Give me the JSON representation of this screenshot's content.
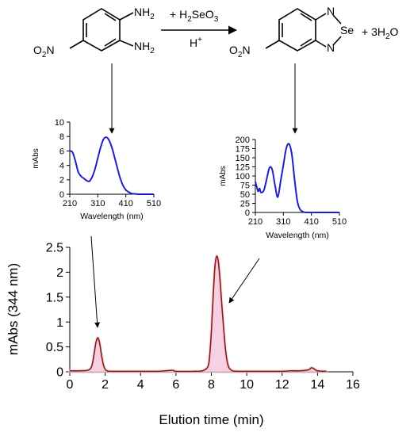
{
  "reaction": {
    "reactant": {
      "nh2_top": "NH",
      "nh2_top_sub": "2",
      "nh2_bottom": "NH",
      "nh2_bottom_sub": "2",
      "nitro": "O",
      "nitro_sub": "2",
      "nitro_n": "N"
    },
    "reagent_above": {
      "plus": "+ H",
      "sub2": "2",
      "rest": "SeO",
      "sub3": "3"
    },
    "reagent_below": {
      "base": "H",
      "sup": "+"
    },
    "product": {
      "n_top": "N",
      "se": "Se",
      "n_bottom": "N",
      "nitro": "O",
      "nitro_sub": "2",
      "nitro_n": "N"
    },
    "byproduct": {
      "pre": "+ 3H",
      "sub": "2",
      "post": "O"
    }
  },
  "colors": {
    "spectrum": "#1f1fcc",
    "chromatogram": "#8b1a10",
    "peak_fill": "#f2c6dc"
  },
  "chart_data": [
    {
      "type": "line",
      "id": "reactant-spectrum",
      "xlabel": "Wavelength (nm)",
      "ylabel": "mAbs",
      "xlim": [
        210,
        510
      ],
      "ylim": [
        0,
        10
      ],
      "xticks": [
        210,
        310,
        410,
        510
      ],
      "yticks": [
        0,
        2,
        4,
        6,
        8,
        10
      ],
      "series": [
        {
          "x": [
            210,
            220,
            230,
            240,
            250,
            260,
            270,
            280,
            290,
            300,
            310,
            320,
            330,
            340,
            350,
            360,
            370,
            380,
            390,
            400,
            410,
            420,
            430,
            440,
            450,
            460,
            470,
            480,
            490,
            500,
            510
          ],
          "values": [
            6.0,
            5.8,
            4.6,
            3.1,
            2.5,
            2.2,
            1.9,
            1.8,
            2.4,
            3.5,
            5.0,
            6.5,
            7.6,
            7.9,
            7.5,
            6.5,
            5.1,
            3.6,
            2.2,
            1.2,
            0.6,
            0.3,
            0.1,
            0.05,
            0.02,
            0,
            0,
            0,
            0,
            0,
            0
          ]
        }
      ]
    },
    {
      "type": "line",
      "id": "product-spectrum",
      "xlabel": "Wavelength (nm)",
      "ylabel": "mAbs",
      "xlim": [
        210,
        510
      ],
      "ylim": [
        0,
        200
      ],
      "xticks": [
        210,
        310,
        410,
        510
      ],
      "yticks": [
        0,
        25,
        50,
        75,
        100,
        125,
        150,
        175,
        200
      ],
      "series": [
        {
          "x": [
            210,
            215,
            220,
            225,
            230,
            240,
            250,
            260,
            270,
            280,
            290,
            300,
            310,
            320,
            330,
            340,
            350,
            360,
            370,
            380,
            390,
            400,
            410,
            420,
            440,
            460,
            480,
            510
          ],
          "values": [
            85,
            70,
            58,
            66,
            55,
            60,
            90,
            122,
            118,
            75,
            42,
            85,
            130,
            175,
            188,
            160,
            90,
            30,
            8,
            2,
            0,
            0,
            0,
            0,
            0,
            0,
            0,
            0
          ]
        }
      ]
    },
    {
      "type": "line",
      "id": "chromatogram",
      "xlabel": "Elution time (min)",
      "ylabel": "mAbs (344 nm)",
      "xlim": [
        0,
        16
      ],
      "ylim": [
        0,
        2.5
      ],
      "xticks": [
        0,
        2,
        4,
        6,
        8,
        10,
        12,
        14,
        16
      ],
      "yticks": [
        0,
        0.5,
        1,
        1.5,
        2,
        2.5
      ],
      "series": [
        {
          "x": [
            0,
            0.5,
            1.0,
            1.2,
            1.3,
            1.4,
            1.5,
            1.6,
            1.7,
            1.8,
            1.9,
            2.0,
            2.1,
            2.3,
            3,
            4,
            5,
            5.8,
            6,
            7,
            7.5,
            7.8,
            7.9,
            8.0,
            8.1,
            8.2,
            8.3,
            8.4,
            8.5,
            8.6,
            8.7,
            8.8,
            8.9,
            9.0,
            9.2,
            9.5,
            10,
            11,
            12,
            12.5,
            13,
            13.5,
            13.6,
            13.7,
            13.8,
            14,
            14.5
          ],
          "values": [
            0.02,
            0.02,
            0.03,
            0.08,
            0.2,
            0.42,
            0.62,
            0.68,
            0.55,
            0.32,
            0.14,
            0.05,
            0.02,
            0.01,
            0.01,
            0.01,
            0.01,
            0.03,
            0.01,
            0.01,
            0.02,
            0.1,
            0.3,
            0.8,
            1.5,
            2.1,
            2.32,
            2.2,
            1.8,
            1.3,
            0.85,
            0.45,
            0.2,
            0.08,
            0.02,
            0.01,
            0.01,
            0.01,
            0.01,
            0.02,
            0.02,
            0.04,
            0.07,
            0.08,
            0.06,
            0.02,
            0.01
          ]
        }
      ]
    }
  ]
}
